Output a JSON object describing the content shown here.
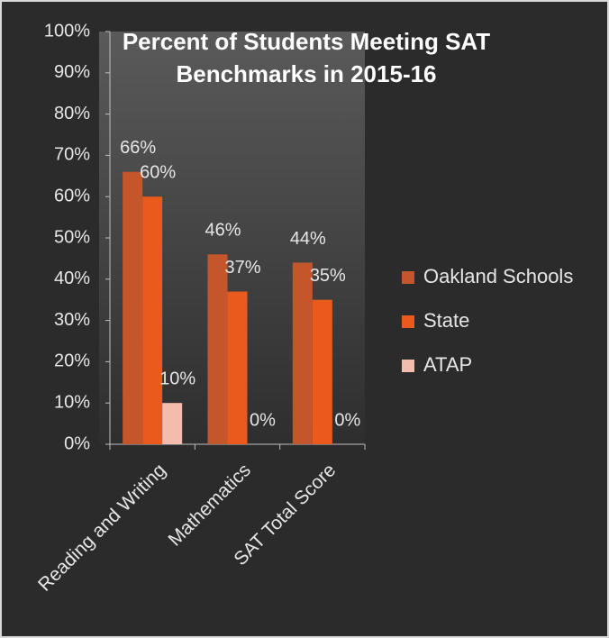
{
  "chart_data": {
    "type": "bar",
    "title": [
      "Percent of Students Meeting SAT",
      "Benchmarks in 2015-16"
    ],
    "categories": [
      "Reading and Writing",
      "Mathematics",
      "SAT Total Score"
    ],
    "series": [
      {
        "name": "Oakland Schools",
        "color": "#c4562c",
        "values": [
          66,
          46,
          44
        ],
        "value_labels": [
          "66%",
          "46%",
          "44%"
        ]
      },
      {
        "name": "State",
        "color": "#ea5a1c",
        "values": [
          60,
          37,
          35
        ],
        "value_labels": [
          "60%",
          "37%",
          "35%"
        ]
      },
      {
        "name": "ATAP",
        "color": "#f4bcad",
        "values": [
          10,
          0,
          0
        ],
        "value_labels": [
          "10%",
          "0%",
          "0%"
        ]
      }
    ],
    "ylim": [
      0,
      100
    ],
    "yticks": [
      {
        "value": 0,
        "label": "0%"
      },
      {
        "value": 10,
        "label": "10%"
      },
      {
        "value": 20,
        "label": "20%"
      },
      {
        "value": 30,
        "label": "30%"
      },
      {
        "value": 40,
        "label": "40%"
      },
      {
        "value": 50,
        "label": "50%"
      },
      {
        "value": 60,
        "label": "60%"
      },
      {
        "value": 70,
        "label": "70%"
      },
      {
        "value": 80,
        "label": "80%"
      },
      {
        "value": 90,
        "label": "90%"
      },
      {
        "value": 100,
        "label": "100%"
      }
    ],
    "legend": "right"
  }
}
